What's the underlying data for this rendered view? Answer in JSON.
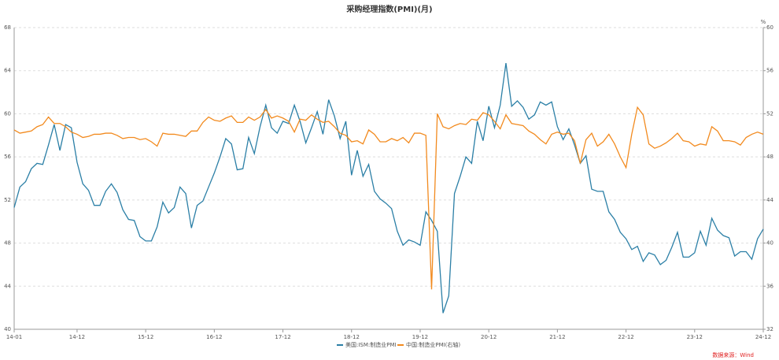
{
  "chart_data": {
    "type": "line",
    "title": "采购经理指数(PMI)(月)",
    "categories": [
      "14-01",
      null,
      null,
      null,
      null,
      null,
      null,
      null,
      null,
      null,
      null,
      "14-12",
      null,
      null,
      null,
      null,
      null,
      null,
      null,
      null,
      null,
      null,
      null,
      "15-12",
      null,
      null,
      null,
      null,
      null,
      null,
      null,
      null,
      null,
      null,
      null,
      "16-12",
      null,
      null,
      null,
      null,
      null,
      null,
      null,
      null,
      null,
      null,
      null,
      "17-12",
      null,
      null,
      null,
      null,
      null,
      null,
      null,
      null,
      null,
      null,
      null,
      "18-12",
      null,
      null,
      null,
      null,
      null,
      null,
      null,
      null,
      null,
      null,
      null,
      "19-12",
      null,
      null,
      null,
      null,
      null,
      null,
      null,
      null,
      null,
      null,
      null,
      "20-12",
      null,
      null,
      null,
      null,
      null,
      null,
      null,
      null,
      null,
      null,
      null,
      "21-12",
      null,
      null,
      null,
      null,
      null,
      null,
      null,
      null,
      null,
      null,
      null,
      "22-12",
      null,
      null,
      null,
      null,
      null,
      null,
      null,
      null,
      null,
      null,
      null,
      "23-12",
      null,
      null,
      null,
      null,
      null,
      null,
      null,
      null,
      null,
      null,
      null,
      "24-12"
    ],
    "series": [
      {
        "name": "美国:ISM:制造业PMI",
        "color": "#2b7fa6",
        "values": [
          51.3,
          53.2,
          53.7,
          54.9,
          55.4,
          55.3,
          57.1,
          59.0,
          56.6,
          59.0,
          58.7,
          55.5,
          53.5,
          52.9,
          51.5,
          51.5,
          52.8,
          53.5,
          52.7,
          51.1,
          50.2,
          50.1,
          48.6,
          48.2,
          48.2,
          49.5,
          51.8,
          50.8,
          51.3,
          53.2,
          52.6,
          49.4,
          51.5,
          51.9,
          53.2,
          54.5,
          56.0,
          57.7,
          57.2,
          54.8,
          54.9,
          57.8,
          56.3,
          58.8,
          60.8,
          58.7,
          58.2,
          59.3,
          59.1,
          60.8,
          59.3,
          57.3,
          58.7,
          60.2,
          58.1,
          61.3,
          59.8,
          57.7,
          59.3,
          54.3,
          56.6,
          54.2,
          55.3,
          52.8,
          52.1,
          51.7,
          51.2,
          49.1,
          47.8,
          48.3,
          48.1,
          47.8,
          50.9,
          50.1,
          49.1,
          41.5,
          43.1,
          52.6,
          54.2,
          56.0,
          55.4,
          59.3,
          57.5,
          60.7,
          58.7,
          60.8,
          64.7,
          60.7,
          61.2,
          60.6,
          59.5,
          59.9,
          61.1,
          60.8,
          61.1,
          58.8,
          57.6,
          58.6,
          57.1,
          55.4,
          56.1,
          53.0,
          52.8,
          52.8,
          50.9,
          50.2,
          49.0,
          48.4,
          47.4,
          47.7,
          46.3,
          47.1,
          46.9,
          46.0,
          46.4,
          47.6,
          49.0,
          46.7,
          46.7,
          47.1,
          49.1,
          47.8,
          50.3,
          49.2,
          48.7,
          48.5,
          46.8,
          47.2,
          47.2,
          46.5,
          48.4,
          49.3
        ]
      },
      {
        "name": "中国:制造业PMI(右轴)",
        "color": "#f28a1e",
        "axis": "y2",
        "values": [
          50.5,
          50.2,
          50.3,
          50.4,
          50.8,
          51.0,
          51.7,
          51.1,
          51.1,
          50.8,
          50.3,
          50.1,
          49.8,
          49.9,
          50.1,
          50.1,
          50.2,
          50.2,
          50.0,
          49.7,
          49.8,
          49.8,
          49.6,
          49.7,
          49.4,
          49.0,
          50.2,
          50.1,
          50.1,
          50.0,
          49.9,
          50.4,
          50.4,
          51.2,
          51.7,
          51.4,
          51.3,
          51.6,
          51.8,
          51.2,
          51.2,
          51.7,
          51.4,
          51.7,
          52.4,
          51.6,
          51.8,
          51.6,
          51.3,
          50.3,
          51.5,
          51.4,
          51.9,
          51.5,
          51.2,
          51.3,
          50.8,
          50.2,
          50.0,
          49.4,
          49.5,
          49.2,
          50.5,
          50.1,
          49.4,
          49.4,
          49.7,
          49.5,
          49.8,
          49.3,
          50.2,
          50.2,
          50.0,
          35.7,
          52.0,
          50.8,
          50.6,
          50.9,
          51.1,
          51.0,
          51.5,
          51.4,
          52.1,
          51.9,
          51.3,
          50.6,
          51.9,
          51.1,
          51.0,
          50.9,
          50.4,
          50.1,
          49.6,
          49.2,
          50.1,
          50.3,
          50.1,
          50.2,
          49.5,
          47.4,
          49.6,
          50.2,
          49.0,
          49.4,
          50.1,
          49.2,
          48.0,
          47.0,
          50.1,
          52.6,
          51.9,
          49.2,
          48.8,
          49.0,
          49.3,
          49.7,
          50.2,
          49.5,
          49.4,
          49.0,
          49.2,
          49.1,
          50.8,
          50.4,
          49.5,
          49.5,
          49.4,
          49.1,
          49.8,
          50.1,
          50.3,
          50.1
        ]
      }
    ],
    "ylim": [
      40,
      68
    ],
    "yticks": [
      40,
      44,
      48,
      52,
      56,
      60,
      64,
      68
    ],
    "y2lim": [
      32,
      60
    ],
    "y2ticks": [
      32,
      36,
      40,
      44,
      48,
      52,
      56,
      60
    ],
    "y2_unit": "%",
    "grid": true,
    "legend": "bottom",
    "source": "数据来源：Wind"
  }
}
